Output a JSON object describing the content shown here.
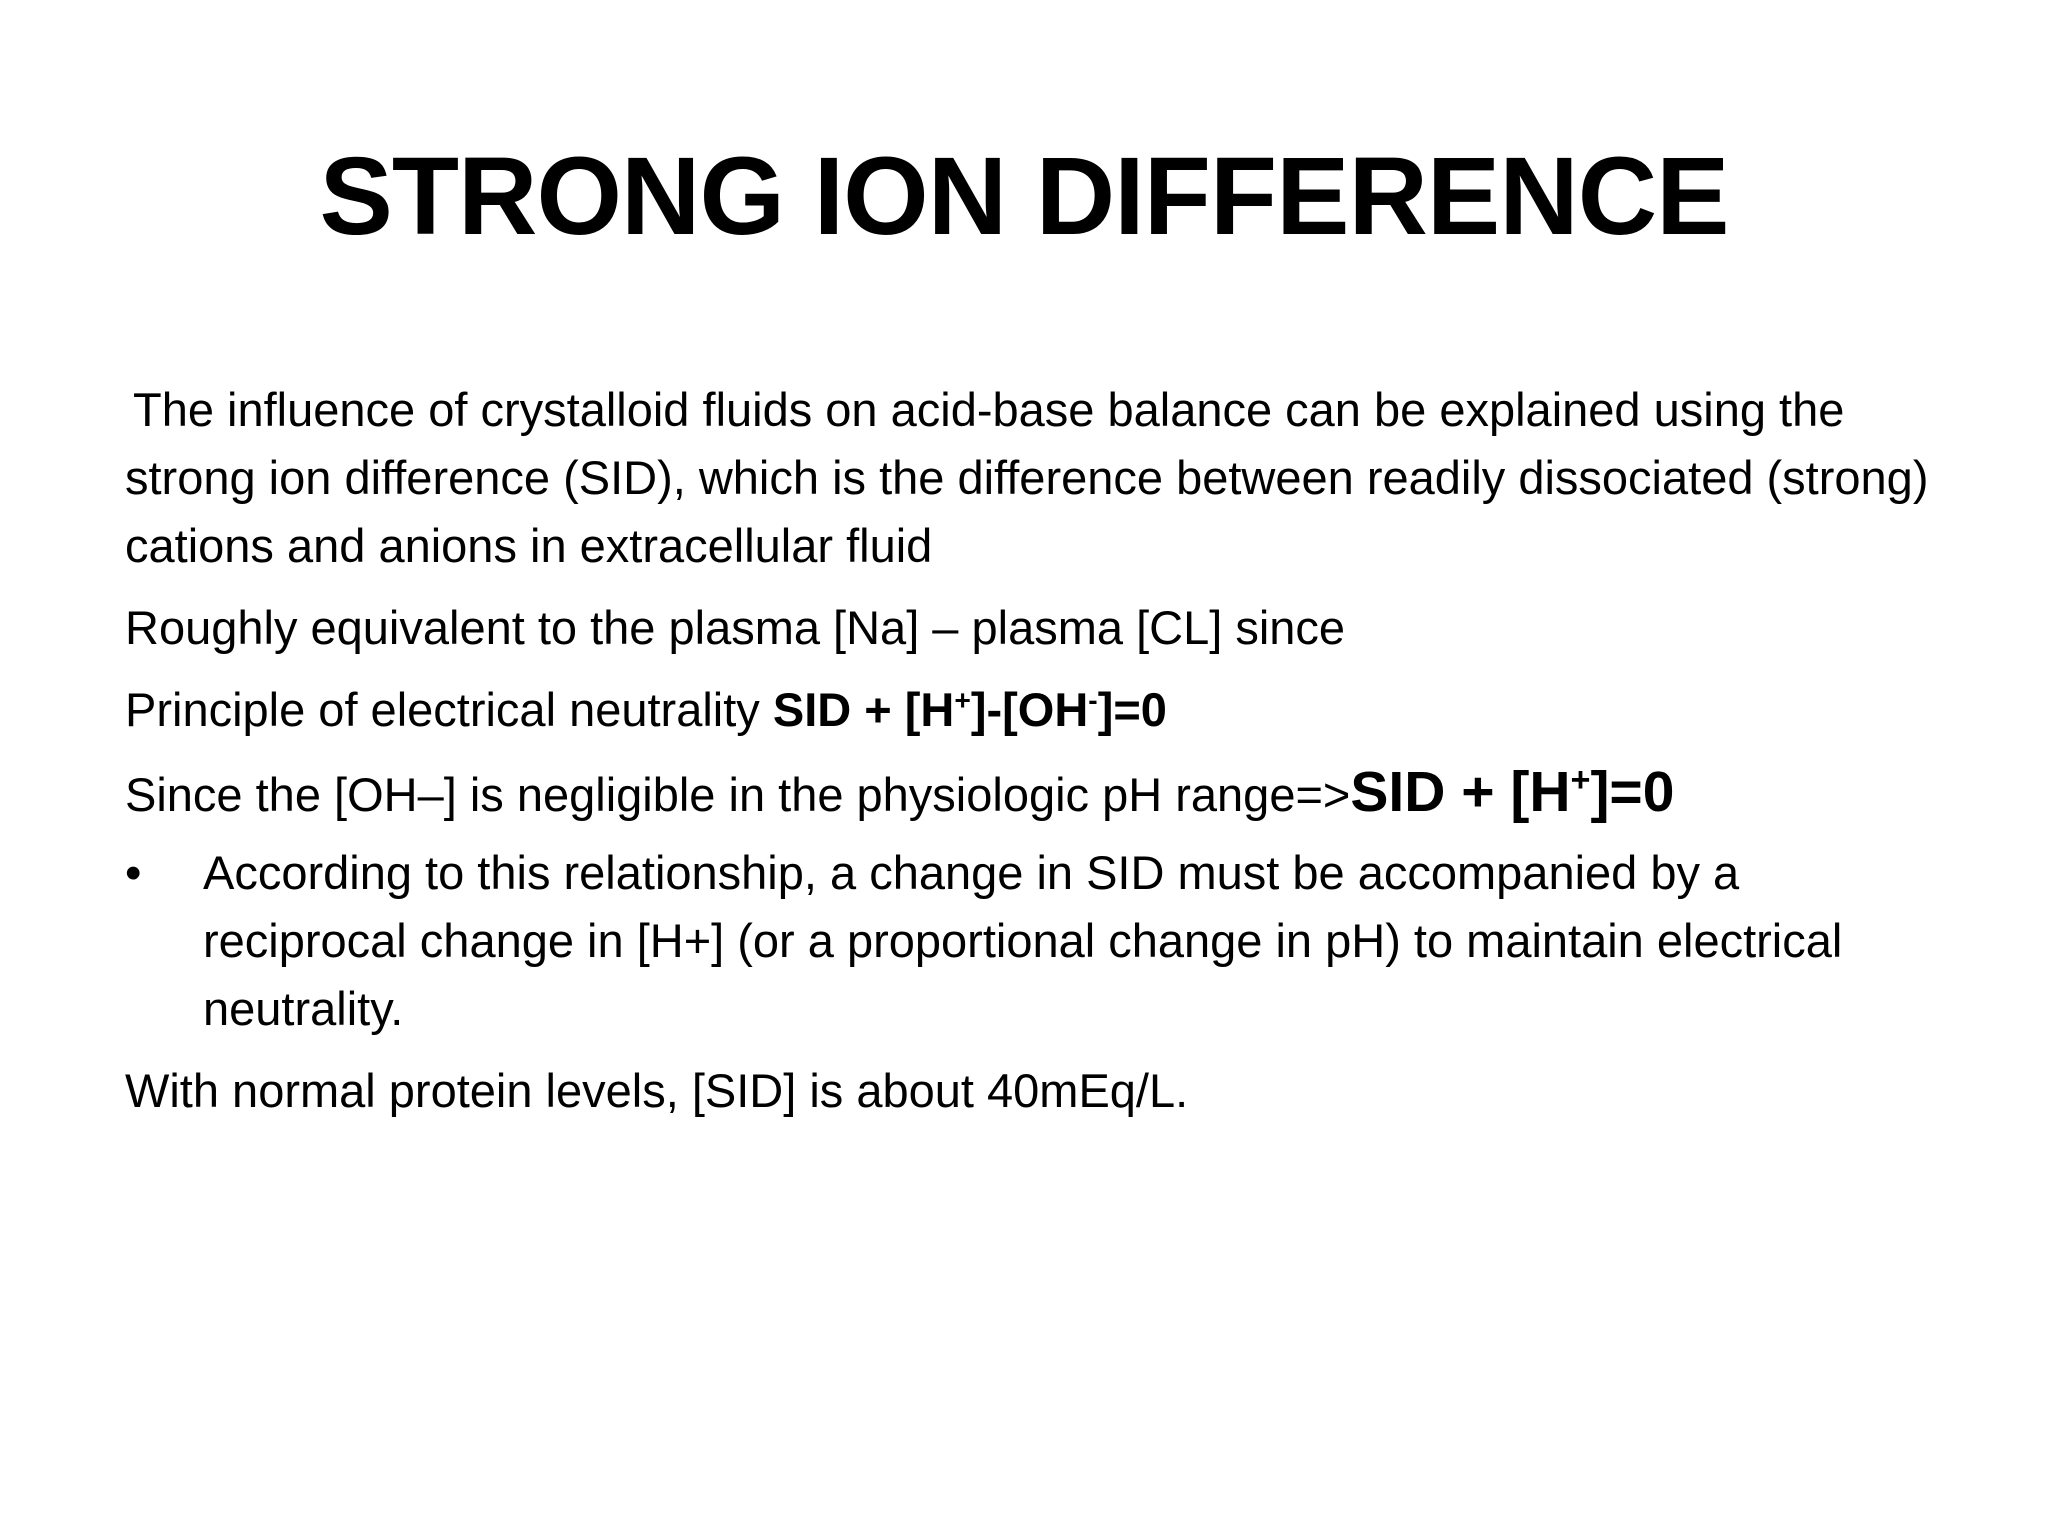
{
  "slide": {
    "title": "STRONG ION DIFFERENCE",
    "intro": "The influence of crystalloid fluids on acid-base balance can be explained using the strong ion difference (SID), which is the difference between readily dissociated (strong) cations and anions in extracellular fluid",
    "roughly": "Roughly  equivalent to the plasma [Na] – plasma [CL] since",
    "principle": {
      "text": "Principle of electrical neutrality ",
      "eq_part1": "SID + [H",
      "eq_sup1": "+",
      "eq_part2": "]-[OH",
      "eq_sup2": "-",
      "eq_part3": "]=0"
    },
    "since": {
      "text": "Since the [OH–] is negligible in the physiologic pH range=>",
      "eq_part1": "SID + [H",
      "eq_sup1": "+",
      "eq_part2": "]=0"
    },
    "bullet": {
      "symbol": "•",
      "text": "According to this relationship, a change in SID must be accompanied by a reciprocal change in [H+] (or a proportional change in pH) to maintain electrical neutrality."
    },
    "normal": "With normal protein levels, [SID] is about 40mEq/L."
  }
}
